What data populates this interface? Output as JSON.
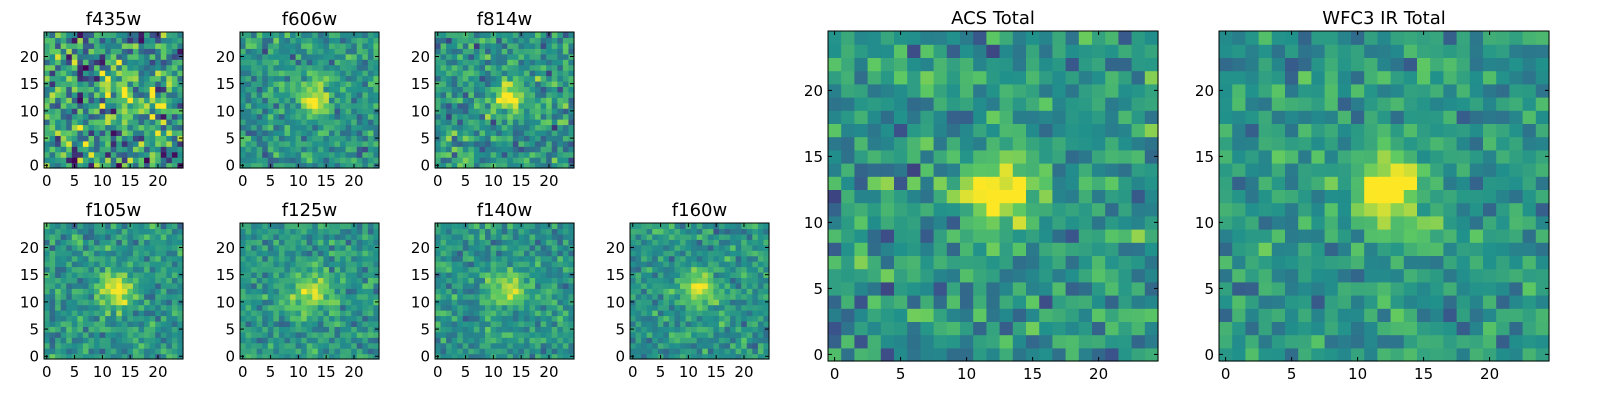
{
  "chart_data": [
    {
      "type": "heatmap",
      "title": "f435w",
      "noise": 0.33,
      "peak": 0.55,
      "blob": [
        13,
        13.5
      ],
      "sigma": 2.4,
      "xticks": [
        "0",
        "5",
        "10",
        "15",
        "20"
      ],
      "yticks": [
        "0",
        "5",
        "10",
        "15",
        "20"
      ],
      "xlim": [
        0,
        24
      ],
      "ylim": [
        0,
        24
      ]
    },
    {
      "type": "heatmap",
      "title": "f606w",
      "noise": 0.17,
      "peak": 0.9,
      "blob": [
        12.5,
        12.5
      ],
      "sigma": 2.1,
      "xticks": [
        "0",
        "5",
        "10",
        "15",
        "20"
      ],
      "yticks": [
        "0",
        "5",
        "10",
        "15",
        "20"
      ],
      "xlim": [
        0,
        24
      ],
      "ylim": [
        0,
        24
      ]
    },
    {
      "type": "heatmap",
      "title": "f814w",
      "noise": 0.2,
      "peak": 1.0,
      "blob": [
        12.5,
        12.5
      ],
      "sigma": 2.0,
      "xticks": [
        "0",
        "5",
        "10",
        "15",
        "20"
      ],
      "yticks": [
        "0",
        "5",
        "10",
        "15",
        "20"
      ],
      "xlim": [
        0,
        24
      ],
      "ylim": [
        0,
        24
      ]
    },
    {
      "type": "heatmap",
      "title": "f105w",
      "noise": 0.16,
      "peak": 1.0,
      "blob": [
        12.5,
        12.5
      ],
      "sigma": 2.1,
      "xticks": [
        "0",
        "5",
        "10",
        "15",
        "20"
      ],
      "yticks": [
        "0",
        "5",
        "10",
        "15",
        "20"
      ],
      "xlim": [
        0,
        24
      ],
      "ylim": [
        0,
        24
      ]
    },
    {
      "type": "heatmap",
      "title": "f125w",
      "noise": 0.15,
      "peak": 0.65,
      "blob": [
        12.5,
        12
      ],
      "sigma": 2.6,
      "xticks": [
        "0",
        "5",
        "10",
        "15",
        "20"
      ],
      "yticks": [
        "0",
        "5",
        "10",
        "15",
        "20"
      ],
      "xlim": [
        0,
        24
      ],
      "ylim": [
        0,
        24
      ]
    },
    {
      "type": "heatmap",
      "title": "f140w",
      "noise": 0.15,
      "peak": 0.7,
      "blob": [
        12.5,
        12.5
      ],
      "sigma": 2.4,
      "xticks": [
        "0",
        "5",
        "10",
        "15",
        "20"
      ],
      "yticks": [
        "0",
        "5",
        "10",
        "15",
        "20"
      ],
      "xlim": [
        0,
        24
      ],
      "ylim": [
        0,
        24
      ]
    },
    {
      "type": "heatmap",
      "title": "f160w",
      "noise": 0.15,
      "peak": 0.8,
      "blob": [
        12,
        12.5
      ],
      "sigma": 2.2,
      "xticks": [
        "0",
        "5",
        "10",
        "15",
        "20"
      ],
      "yticks": [
        "0",
        "5",
        "10",
        "15",
        "20"
      ],
      "xlim": [
        0,
        24
      ],
      "ylim": [
        0,
        24
      ]
    },
    {
      "type": "heatmap",
      "title": "ACS Total",
      "noise": 0.2,
      "peak": 1.0,
      "blob": [
        12.5,
        12.5
      ],
      "sigma": 2.0,
      "xticks": [
        "0",
        "5",
        "10",
        "15",
        "20"
      ],
      "yticks": [
        "0",
        "5",
        "10",
        "15",
        "20"
      ],
      "xlim": [
        0,
        24
      ],
      "ylim": [
        0,
        24
      ]
    },
    {
      "type": "heatmap",
      "title": "WFC3 IR Total",
      "noise": 0.16,
      "peak": 0.95,
      "blob": [
        12.5,
        12.5
      ],
      "sigma": 2.1,
      "xticks": [
        "0",
        "5",
        "10",
        "15",
        "20"
      ],
      "yticks": [
        "0",
        "5",
        "10",
        "15",
        "20"
      ],
      "xlim": [
        0,
        24
      ],
      "ylim": [
        0,
        24
      ]
    }
  ],
  "colormap": [
    "#440154",
    "#3b528b",
    "#21918c",
    "#5ec962",
    "#fde725"
  ]
}
